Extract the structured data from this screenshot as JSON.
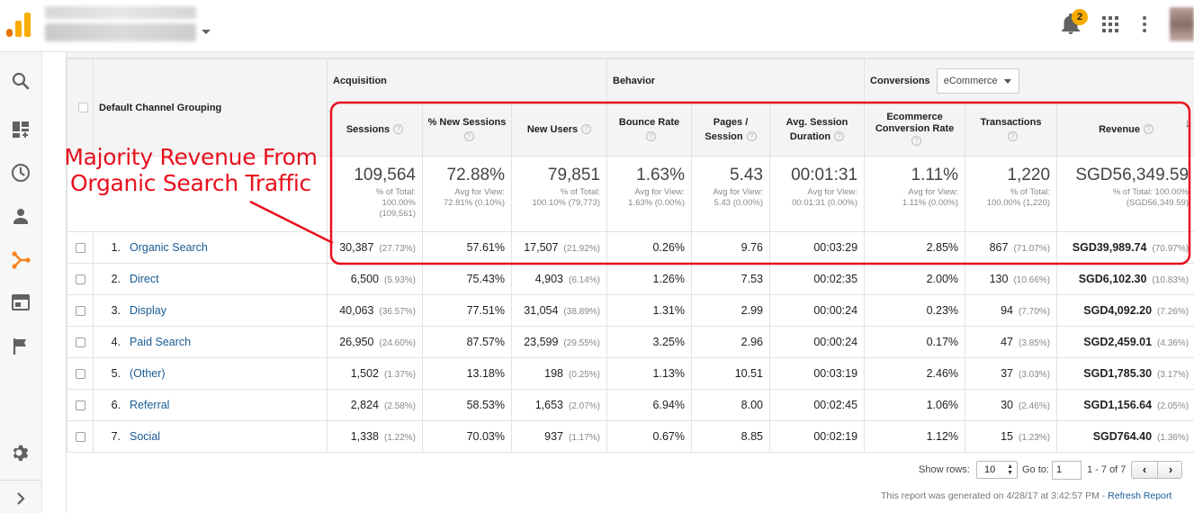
{
  "app": {
    "notification_count": "2",
    "brand_colors": {
      "logo_orange": "#f9ab00",
      "logo_dark_orange": "#e37400",
      "annotation_red": "#e8101d",
      "link_blue": "#1a5a96"
    }
  },
  "nav": {
    "icons": [
      "search-icon",
      "customization-icon",
      "realtime-clock-icon",
      "audience-person-icon",
      "acquisition-icon",
      "behavior-icon",
      "conversions-flag-icon",
      "admin-gear-icon",
      "expand-chevron-icon"
    ],
    "active": "acquisition-icon"
  },
  "table": {
    "dimension_header": "Default Channel Grouping",
    "groups": {
      "acquisition": "Acquisition",
      "behavior": "Behavior",
      "conversions": "Conversions"
    },
    "conversions_select": "eCommerce",
    "metrics": [
      "Sessions",
      "% New Sessions",
      "New Users",
      "Bounce Rate",
      "Pages / Session",
      "Avg. Session Duration",
      "Ecommerce Conversion Rate",
      "Transactions",
      "Revenue"
    ],
    "metric_lines": {
      "m1a": "% New Sessions",
      "m4a": "Pages /",
      "m4b": "Session",
      "m5a": "Avg. Session",
      "m5b": "Duration",
      "m6a": "Ecommerce",
      "m6b": "Conversion Rate"
    },
    "help_glyph": "?",
    "sort_glyph": "↓",
    "totals": [
      {
        "value": "109,564",
        "sub1": "% of Total:",
        "sub2": "100.00%",
        "sub3": "(109,561)"
      },
      {
        "value": "72.88%",
        "sub1": "Avg for View:",
        "sub2": "72.81% (0.10%)"
      },
      {
        "value": "79,851",
        "sub1": "% of Total:",
        "sub2": "100.10% (79,773)"
      },
      {
        "value": "1.63%",
        "sub1": "Avg for View:",
        "sub2": "1.63% (0.00%)"
      },
      {
        "value": "5.43",
        "sub1": "Avg for View:",
        "sub2": "5.43 (0.00%)"
      },
      {
        "value": "00:01:31",
        "sub1": "Avg for View:",
        "sub2": "00:01:31 (0.00%)"
      },
      {
        "value": "1.11%",
        "sub1": "Avg for View:",
        "sub2": "1.11% (0.00%)"
      },
      {
        "value": "1,220",
        "sub1": "% of Total:",
        "sub2": "100.00% (1,220)"
      },
      {
        "value": "SGD56,349.59",
        "sub1": "% of Total: 100.00%",
        "sub2": "(SGD56,349.59)"
      }
    ],
    "rows": [
      {
        "num": "1.",
        "channel": "Organic Search",
        "sessions": "30,387",
        "sessions_pct": "(27.73%)",
        "new_sessions": "57.61%",
        "new_users": "17,507",
        "new_users_pct": "(21.92%)",
        "bounce": "0.26%",
        "pages": "9.76",
        "duration": "00:03:29",
        "conv": "2.85%",
        "transactions": "867",
        "transactions_pct": "(71.07%)",
        "revenue": "SGD39,989.74",
        "revenue_pct": "(70.97%)"
      },
      {
        "num": "2.",
        "channel": "Direct",
        "sessions": "6,500",
        "sessions_pct": "(5.93%)",
        "new_sessions": "75.43%",
        "new_users": "4,903",
        "new_users_pct": "(6.14%)",
        "bounce": "1.26%",
        "pages": "7.53",
        "duration": "00:02:35",
        "conv": "2.00%",
        "transactions": "130",
        "transactions_pct": "(10.66%)",
        "revenue": "SGD6,102.30",
        "revenue_pct": "(10.83%)"
      },
      {
        "num": "3.",
        "channel": "Display",
        "sessions": "40,063",
        "sessions_pct": "(36.57%)",
        "new_sessions": "77.51%",
        "new_users": "31,054",
        "new_users_pct": "(38.89%)",
        "bounce": "1.31%",
        "pages": "2.99",
        "duration": "00:00:24",
        "conv": "0.23%",
        "transactions": "94",
        "transactions_pct": "(7.70%)",
        "revenue": "SGD4,092.20",
        "revenue_pct": "(7.26%)"
      },
      {
        "num": "4.",
        "channel": "Paid Search",
        "sessions": "26,950",
        "sessions_pct": "(24.60%)",
        "new_sessions": "87.57%",
        "new_users": "23,599",
        "new_users_pct": "(29.55%)",
        "bounce": "3.25%",
        "pages": "2.96",
        "duration": "00:00:24",
        "conv": "0.17%",
        "transactions": "47",
        "transactions_pct": "(3.85%)",
        "revenue": "SGD2,459.01",
        "revenue_pct": "(4.36%)"
      },
      {
        "num": "5.",
        "channel": "(Other)",
        "sessions": "1,502",
        "sessions_pct": "(1.37%)",
        "new_sessions": "13.18%",
        "new_users": "198",
        "new_users_pct": "(0.25%)",
        "bounce": "1.13%",
        "pages": "10.51",
        "duration": "00:03:19",
        "conv": "2.46%",
        "transactions": "37",
        "transactions_pct": "(3.03%)",
        "revenue": "SGD1,785.30",
        "revenue_pct": "(3.17%)"
      },
      {
        "num": "6.",
        "channel": "Referral",
        "sessions": "2,824",
        "sessions_pct": "(2.58%)",
        "new_sessions": "58.53%",
        "new_users": "1,653",
        "new_users_pct": "(2.07%)",
        "bounce": "6.94%",
        "pages": "8.00",
        "duration": "00:02:45",
        "conv": "1.06%",
        "transactions": "30",
        "transactions_pct": "(2.46%)",
        "revenue": "SGD1,156.64",
        "revenue_pct": "(2.05%)"
      },
      {
        "num": "7.",
        "channel": "Social",
        "sessions": "1,338",
        "sessions_pct": "(1.22%)",
        "new_sessions": "70.03%",
        "new_users": "937",
        "new_users_pct": "(1.17%)",
        "bounce": "0.67%",
        "pages": "8.85",
        "duration": "00:02:19",
        "conv": "1.12%",
        "transactions": "15",
        "transactions_pct": "(1.23%)",
        "revenue": "SGD764.40",
        "revenue_pct": "(1.36%)"
      }
    ]
  },
  "footer": {
    "show_rows_label": "Show rows:",
    "show_rows_value": "10",
    "goto_label": "Go to:",
    "goto_value": "1",
    "range_text": "1 - 7 of 7",
    "prev_glyph": "‹",
    "next_glyph": "›",
    "generated_text": "This report was generated on 4/28/17 at 3:42:57 PM -",
    "refresh_label": "Refresh Report"
  },
  "annotation": {
    "line1": "Majority Revenue From",
    "line2": "Organic Search Traffic"
  }
}
